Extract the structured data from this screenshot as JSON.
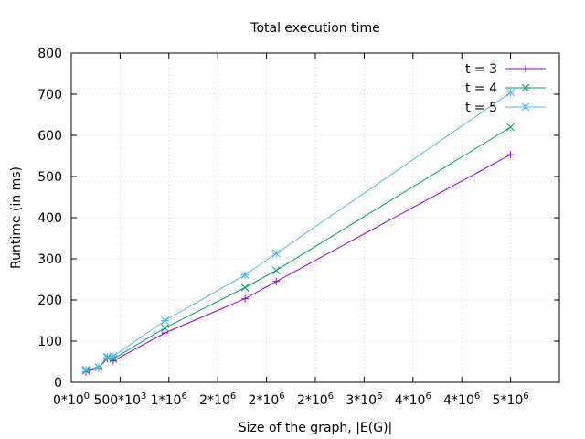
{
  "chart_data": {
    "type": "line",
    "title": "Total execution time",
    "xlabel": "Size of the graph, |E(G)|",
    "ylabel": "Runtime (in ms)",
    "xlim": [
      0,
      5000000
    ],
    "ylim": [
      0,
      800
    ],
    "grid": true,
    "legend_position": "top-right",
    "x_ticks": [
      {
        "value": 0,
        "base": "0*10",
        "exp": "0"
      },
      {
        "value": 500000,
        "base": "500*10",
        "exp": "3"
      },
      {
        "value": 1000000,
        "base": "1*10",
        "exp": "6"
      },
      {
        "value": 1500000,
        "base": "2*10",
        "exp": "6"
      },
      {
        "value": 2000000,
        "base": "2*10",
        "exp": "6"
      },
      {
        "value": 2500000,
        "base": "2*10",
        "exp": "6"
      },
      {
        "value": 3000000,
        "base": "3*10",
        "exp": "6"
      },
      {
        "value": 3500000,
        "base": "4*10",
        "exp": "6"
      },
      {
        "value": 4000000,
        "base": "4*10",
        "exp": "6"
      },
      {
        "value": 4500000,
        "base": "5*10",
        "exp": "6"
      }
    ],
    "y_ticks": [
      0,
      100,
      200,
      300,
      400,
      500,
      600,
      700,
      800
    ],
    "series": [
      {
        "name": "t = 3",
        "color": "#9400d3",
        "marker": "plus",
        "points": [
          [
            150000,
            25
          ],
          [
            280000,
            35
          ],
          [
            370000,
            58
          ],
          [
            430000,
            52
          ],
          [
            960000,
            120
          ],
          [
            1780000,
            203
          ],
          [
            2100000,
            245
          ],
          [
            4500000,
            553
          ]
        ]
      },
      {
        "name": "t = 4",
        "color": "#009e73",
        "marker": "cross",
        "points": [
          [
            150000,
            28
          ],
          [
            280000,
            36
          ],
          [
            370000,
            60
          ],
          [
            430000,
            57
          ],
          [
            960000,
            132
          ],
          [
            1780000,
            230
          ],
          [
            2100000,
            272
          ],
          [
            4500000,
            620
          ]
        ]
      },
      {
        "name": "t = 5",
        "color": "#56b4e9",
        "marker": "star",
        "points": [
          [
            150000,
            31
          ],
          [
            280000,
            37
          ],
          [
            370000,
            62
          ],
          [
            430000,
            63
          ],
          [
            960000,
            150
          ],
          [
            1780000,
            261
          ],
          [
            2100000,
            313
          ],
          [
            4500000,
            704
          ]
        ]
      }
    ]
  }
}
